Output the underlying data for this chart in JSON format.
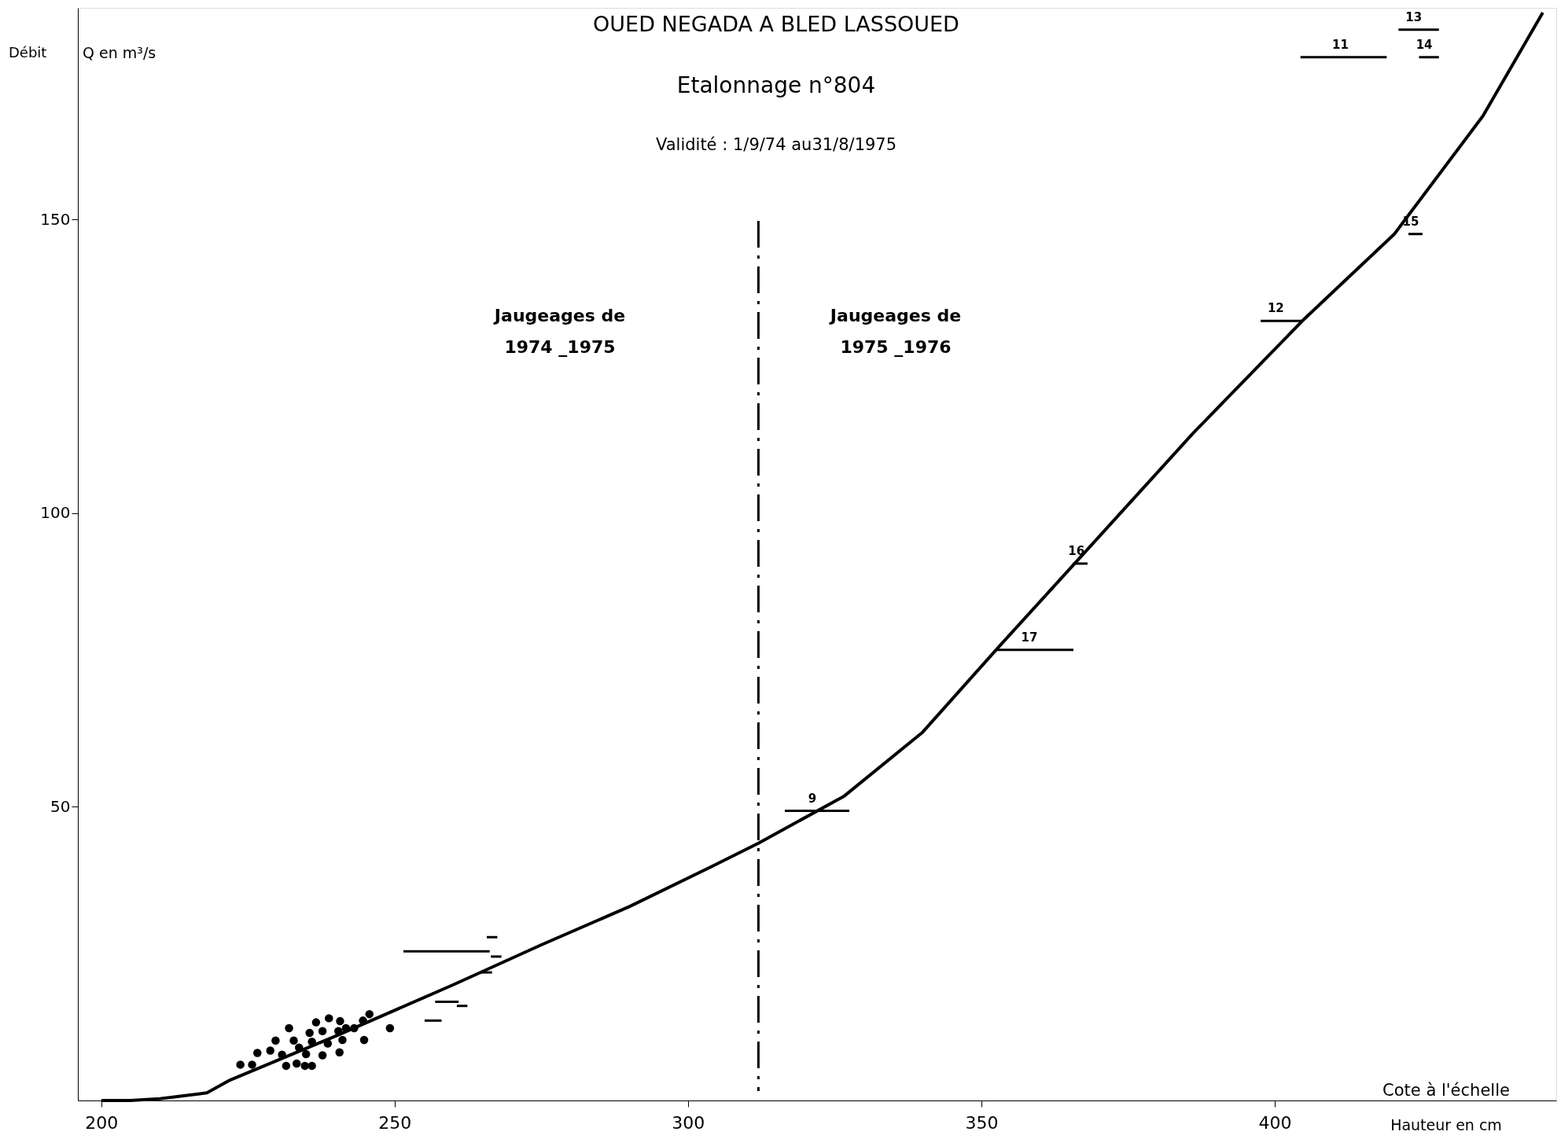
{
  "chart_data": {
    "type": "scatter",
    "title": "OUED NEGADA A BLED LASSOUED",
    "subtitle": [
      "Etalonnage n°804",
      "Validité : 1/9/74 au31/8/1975"
    ],
    "xlabel": "Cote à l'échelle",
    "ylabel": "Q en m³/s",
    "xlim": [
      196,
      448
    ],
    "ylim": [
      0,
      186
    ],
    "xticks": [
      200,
      250,
      300,
      350,
      400
    ],
    "yticks": [
      50,
      100,
      150
    ],
    "grid": false,
    "series": [
      {
        "type": "line",
        "color": "#000000",
        "marker": "none",
        "line_style": "solid",
        "x": [
          200,
          205,
          210,
          218,
          222,
          240,
          260,
          275,
          290,
          304,
          312,
          326.6,
          340,
          352.5,
          366,
          386,
          404.7,
          420.4,
          435.5,
          445.7
        ],
        "values": [
          0,
          0,
          0.3,
          1.3,
          3.5,
          11,
          19.7,
          26.5,
          33,
          39.8,
          43.8,
          51.8,
          62.7,
          76.7,
          91.5,
          113.5,
          132.7,
          147.5,
          167.6,
          185.2
        ]
      },
      {
        "color": "#000000",
        "marker": "circle",
        "x": [
          223.7,
          225.7,
          226.6,
          228.8,
          229.7,
          230.8,
          231.5,
          232,
          232.8,
          233.3,
          233.7,
          234.7,
          234.9,
          235.9,
          235.5,
          235.9,
          236.6,
          237.7,
          237.7,
          238.8,
          238.6,
          240.6,
          240.7,
          240.4,
          241.1,
          241.7,
          243.1,
          244.6,
          245.7,
          244.8,
          249.2
        ],
        "values": [
          6.1,
          6.1,
          8.1,
          8.5,
          10.2,
          7.8,
          5.9,
          12.3,
          10.2,
          6.3,
          9,
          5.9,
          7.9,
          5.9,
          11.5,
          10,
          13.3,
          11.8,
          7.7,
          14,
          9.7,
          8.2,
          13.5,
          11.8,
          10.3,
          12.3,
          12.3,
          13.6,
          14.7,
          10.3,
          12.3
        ]
      },
      {
        "type": "line",
        "color": "#000000",
        "marker": "none",
        "x": [
          251.5,
          266.2
        ],
        "values": [
          25.4,
          25.4
        ]
      },
      {
        "type": "line",
        "color": "#000000",
        "marker": "none",
        "x": [
          265.7,
          267.5
        ],
        "values": [
          27.8,
          27.8
        ]
      },
      {
        "type": "line",
        "color": "#000000",
        "marker": "none",
        "x": [
          266.4,
          268.2
        ],
        "values": [
          24.5,
          24.5
        ]
      },
      {
        "type": "line",
        "color": "#000000",
        "marker": "none",
        "x": [
          264.6,
          266.6
        ],
        "values": [
          21.8,
          21.8
        ]
      },
      {
        "type": "line",
        "color": "#000000",
        "marker": "none",
        "x": [
          256.9,
          260.9
        ],
        "values": [
          16.8,
          16.8
        ]
      },
      {
        "type": "line",
        "color": "#000000",
        "marker": "none",
        "x": [
          260.6,
          262.4
        ],
        "values": [
          16.1,
          16.1
        ]
      },
      {
        "type": "line",
        "color": "#000000",
        "marker": "none",
        "x": [
          255.1,
          258.0
        ],
        "values": [
          13.6,
          13.6
        ]
      },
      {
        "type": "line",
        "color": "#000000",
        "marker": "none",
        "x": [
          316.5,
          327.5
        ],
        "values": [
          49.3,
          49.3
        ]
      },
      {
        "type": "line",
        "color": "#000000",
        "marker": "none",
        "x": [
          352.5,
          365.7
        ],
        "values": [
          76.7,
          76.7
        ]
      },
      {
        "type": "line",
        "color": "#000000",
        "marker": "none",
        "x": [
          365.6,
          368.1
        ],
        "values": [
          91.4,
          91.4
        ]
      },
      {
        "type": "line",
        "color": "#000000",
        "marker": "none",
        "x": [
          397.6,
          404.7
        ],
        "values": [
          132.7,
          132.7
        ]
      },
      {
        "type": "line",
        "color": "#000000",
        "marker": "none",
        "x": [
          422.8,
          425.2
        ],
        "values": [
          147.5,
          147.5
        ]
      },
      {
        "type": "line",
        "color": "#000000",
        "marker": "none",
        "x": [
          404.4,
          419.1
        ],
        "values": [
          177.6,
          177.6
        ]
      },
      {
        "type": "line",
        "color": "#000000",
        "marker": "none",
        "x": [
          421.1,
          428.0
        ],
        "values": [
          182.3,
          182.3
        ]
      },
      {
        "type": "line",
        "color": "#000000",
        "marker": "none",
        "x": [
          424.6,
          428.0
        ],
        "values": [
          177.6,
          177.6
        ]
      }
    ],
    "ref_lines": [
      {
        "axis": "x",
        "value": 312,
        "line_style": "dashed",
        "color": "#000000"
      }
    ],
    "annotations": [
      "Débit",
      "Hauteur en cm",
      "Jaugeages de\n1974 _1975",
      "Jaugeages de\n1975 _1976",
      {
        "text": "9",
        "x": 322,
        "y": 49.3
      },
      {
        "text": "17",
        "x": 359,
        "y": 76.7
      },
      {
        "text": "16",
        "x": 367,
        "y": 91.4
      },
      {
        "text": "12",
        "x": 401,
        "y": 132.7
      },
      {
        "text": "15",
        "x": 424,
        "y": 147.5
      },
      {
        "text": "11",
        "x": 412,
        "y": 177.6
      },
      {
        "text": "13",
        "x": 424.5,
        "y": 182.3
      },
      {
        "text": "14",
        "x": 426.3,
        "y": 177.6
      }
    ]
  }
}
